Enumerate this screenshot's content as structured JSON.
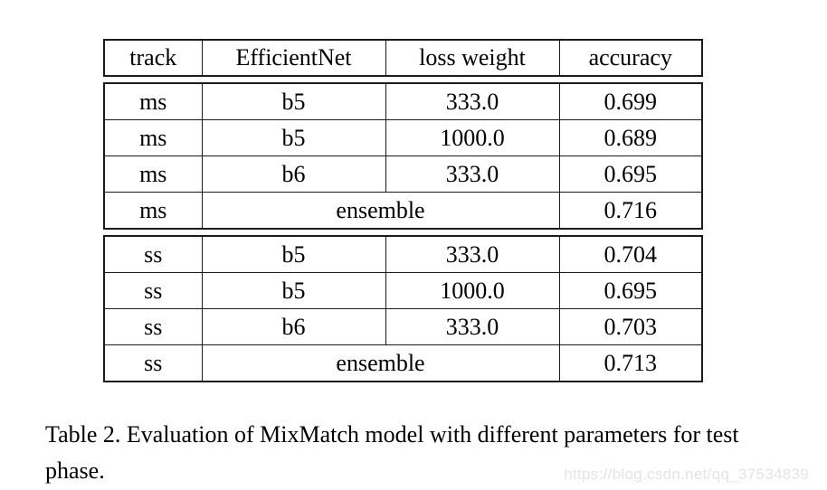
{
  "caption": "Table 2. Evaluation of MixMatch model with different parameters for test phase.",
  "watermark": "https://blog.csdn.net/qq_37534839",
  "table": {
    "columns": [
      "track",
      "EfficientNet",
      "loss weight",
      "accuracy"
    ],
    "sections": [
      {
        "name": "ms",
        "rows": [
          {
            "track": "ms",
            "efficientnet": "b5",
            "loss_weight": "333.0",
            "accuracy": "0.699"
          },
          {
            "track": "ms",
            "efficientnet": "b5",
            "loss_weight": "1000.0",
            "accuracy": "0.689"
          },
          {
            "track": "ms",
            "efficientnet": "b6",
            "loss_weight": "333.0",
            "accuracy": "0.695"
          }
        ],
        "ensemble": {
          "track": "ms",
          "label": "ensemble",
          "accuracy": "0.716"
        }
      },
      {
        "name": "ss",
        "rows": [
          {
            "track": "ss",
            "efficientnet": "b5",
            "loss_weight": "333.0",
            "accuracy": "0.704"
          },
          {
            "track": "ss",
            "efficientnet": "b5",
            "loss_weight": "1000.0",
            "accuracy": "0.695"
          },
          {
            "track": "ss",
            "efficientnet": "b6",
            "loss_weight": "333.0",
            "accuracy": "0.703"
          }
        ],
        "ensemble": {
          "track": "ss",
          "label": "ensemble",
          "accuracy": "0.713"
        }
      }
    ]
  },
  "colors": {
    "border": "#1b1b1b",
    "text": "#000000",
    "watermark": "#e4e4e8",
    "background": "#ffffff"
  }
}
